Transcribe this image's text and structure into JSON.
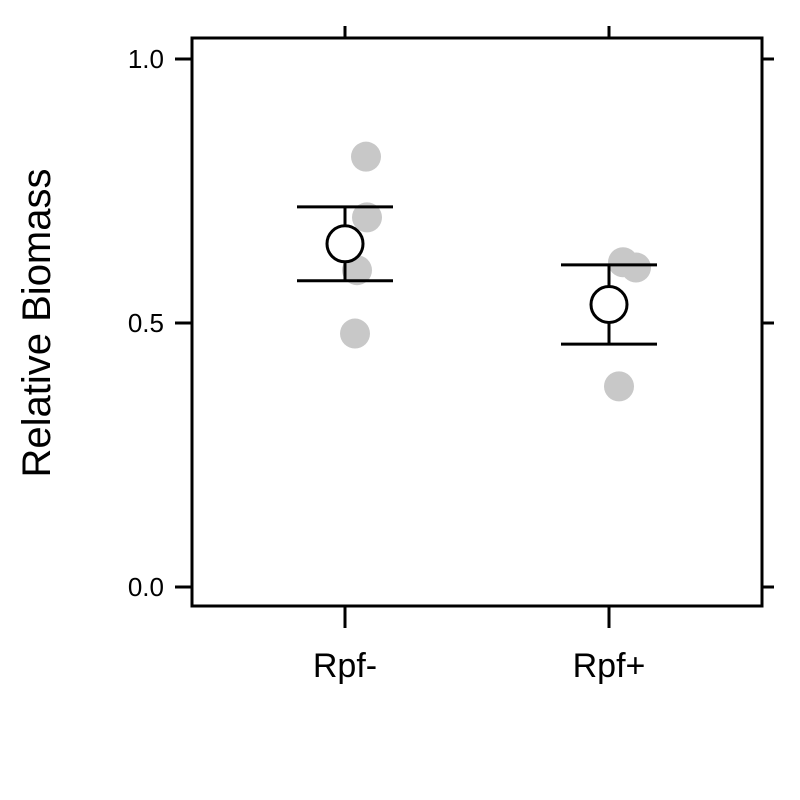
{
  "chart_data": {
    "type": "scatter",
    "title": "",
    "xlabel": "",
    "ylabel": "Relative Biomass",
    "ylim": [
      -0.04,
      1.04
    ],
    "yticks": [
      0.0,
      0.5,
      1.0
    ],
    "ytick_labels": [
      "0.0",
      "0.5",
      "1.0"
    ],
    "grid": false,
    "categories": [
      "Rpf-",
      "Rpf+"
    ],
    "colors": {
      "points": "#c8c8c8",
      "mean_marker": "#000000",
      "error_bar": "#000000",
      "axis": "#000000"
    },
    "groups": [
      {
        "category": "Rpf-",
        "points": [
          0.815,
          0.7,
          0.6,
          0.48
        ],
        "mean": 0.65,
        "error_low": 0.58,
        "error_high": 0.72
      },
      {
        "category": "Rpf+",
        "points": [
          0.615,
          0.605,
          0.38
        ],
        "mean": 0.535,
        "error_low": 0.46,
        "error_high": 0.61
      }
    ]
  }
}
